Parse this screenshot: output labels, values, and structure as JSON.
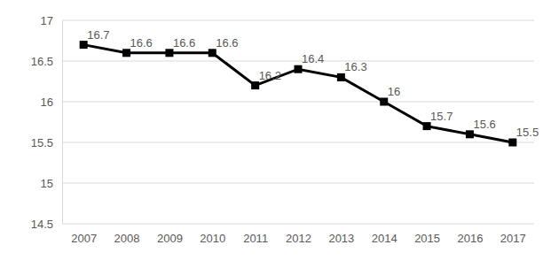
{
  "chart_data": {
    "type": "line",
    "categories": [
      "2007",
      "2008",
      "2009",
      "2010",
      "2011",
      "2012",
      "2013",
      "2014",
      "2015",
      "2016",
      "2017"
    ],
    "values": [
      16.7,
      16.6,
      16.6,
      16.6,
      16.2,
      16.4,
      16.3,
      16,
      15.7,
      15.6,
      15.5
    ],
    "color": "#000000",
    "marker": "square",
    "line_style": "solid",
    "ylim": [
      14.5,
      17
    ],
    "yticks": [
      14.5,
      15,
      15.5,
      16,
      16.5,
      17
    ],
    "grid": true,
    "data_labels": true
  }
}
